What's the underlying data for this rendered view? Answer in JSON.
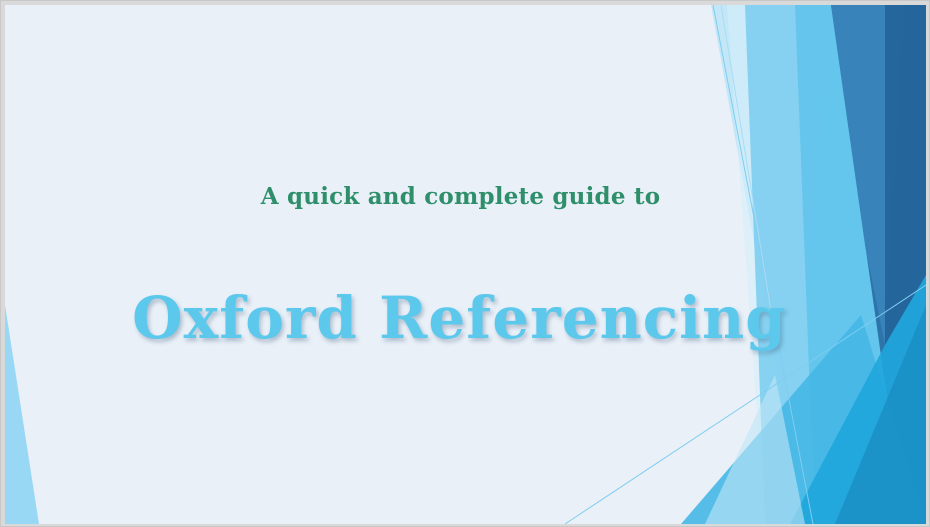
{
  "slide": {
    "subtitle": "A quick and complete guide to",
    "title": "Oxford Referencing"
  },
  "colors": {
    "background": "#e9f0f8",
    "subtitle": "#2f8f6a",
    "title": "#5bc8ec",
    "accent_light": "#79cdf0",
    "accent_mid": "#35b2e6",
    "accent_dark": "#2a6ea3"
  }
}
